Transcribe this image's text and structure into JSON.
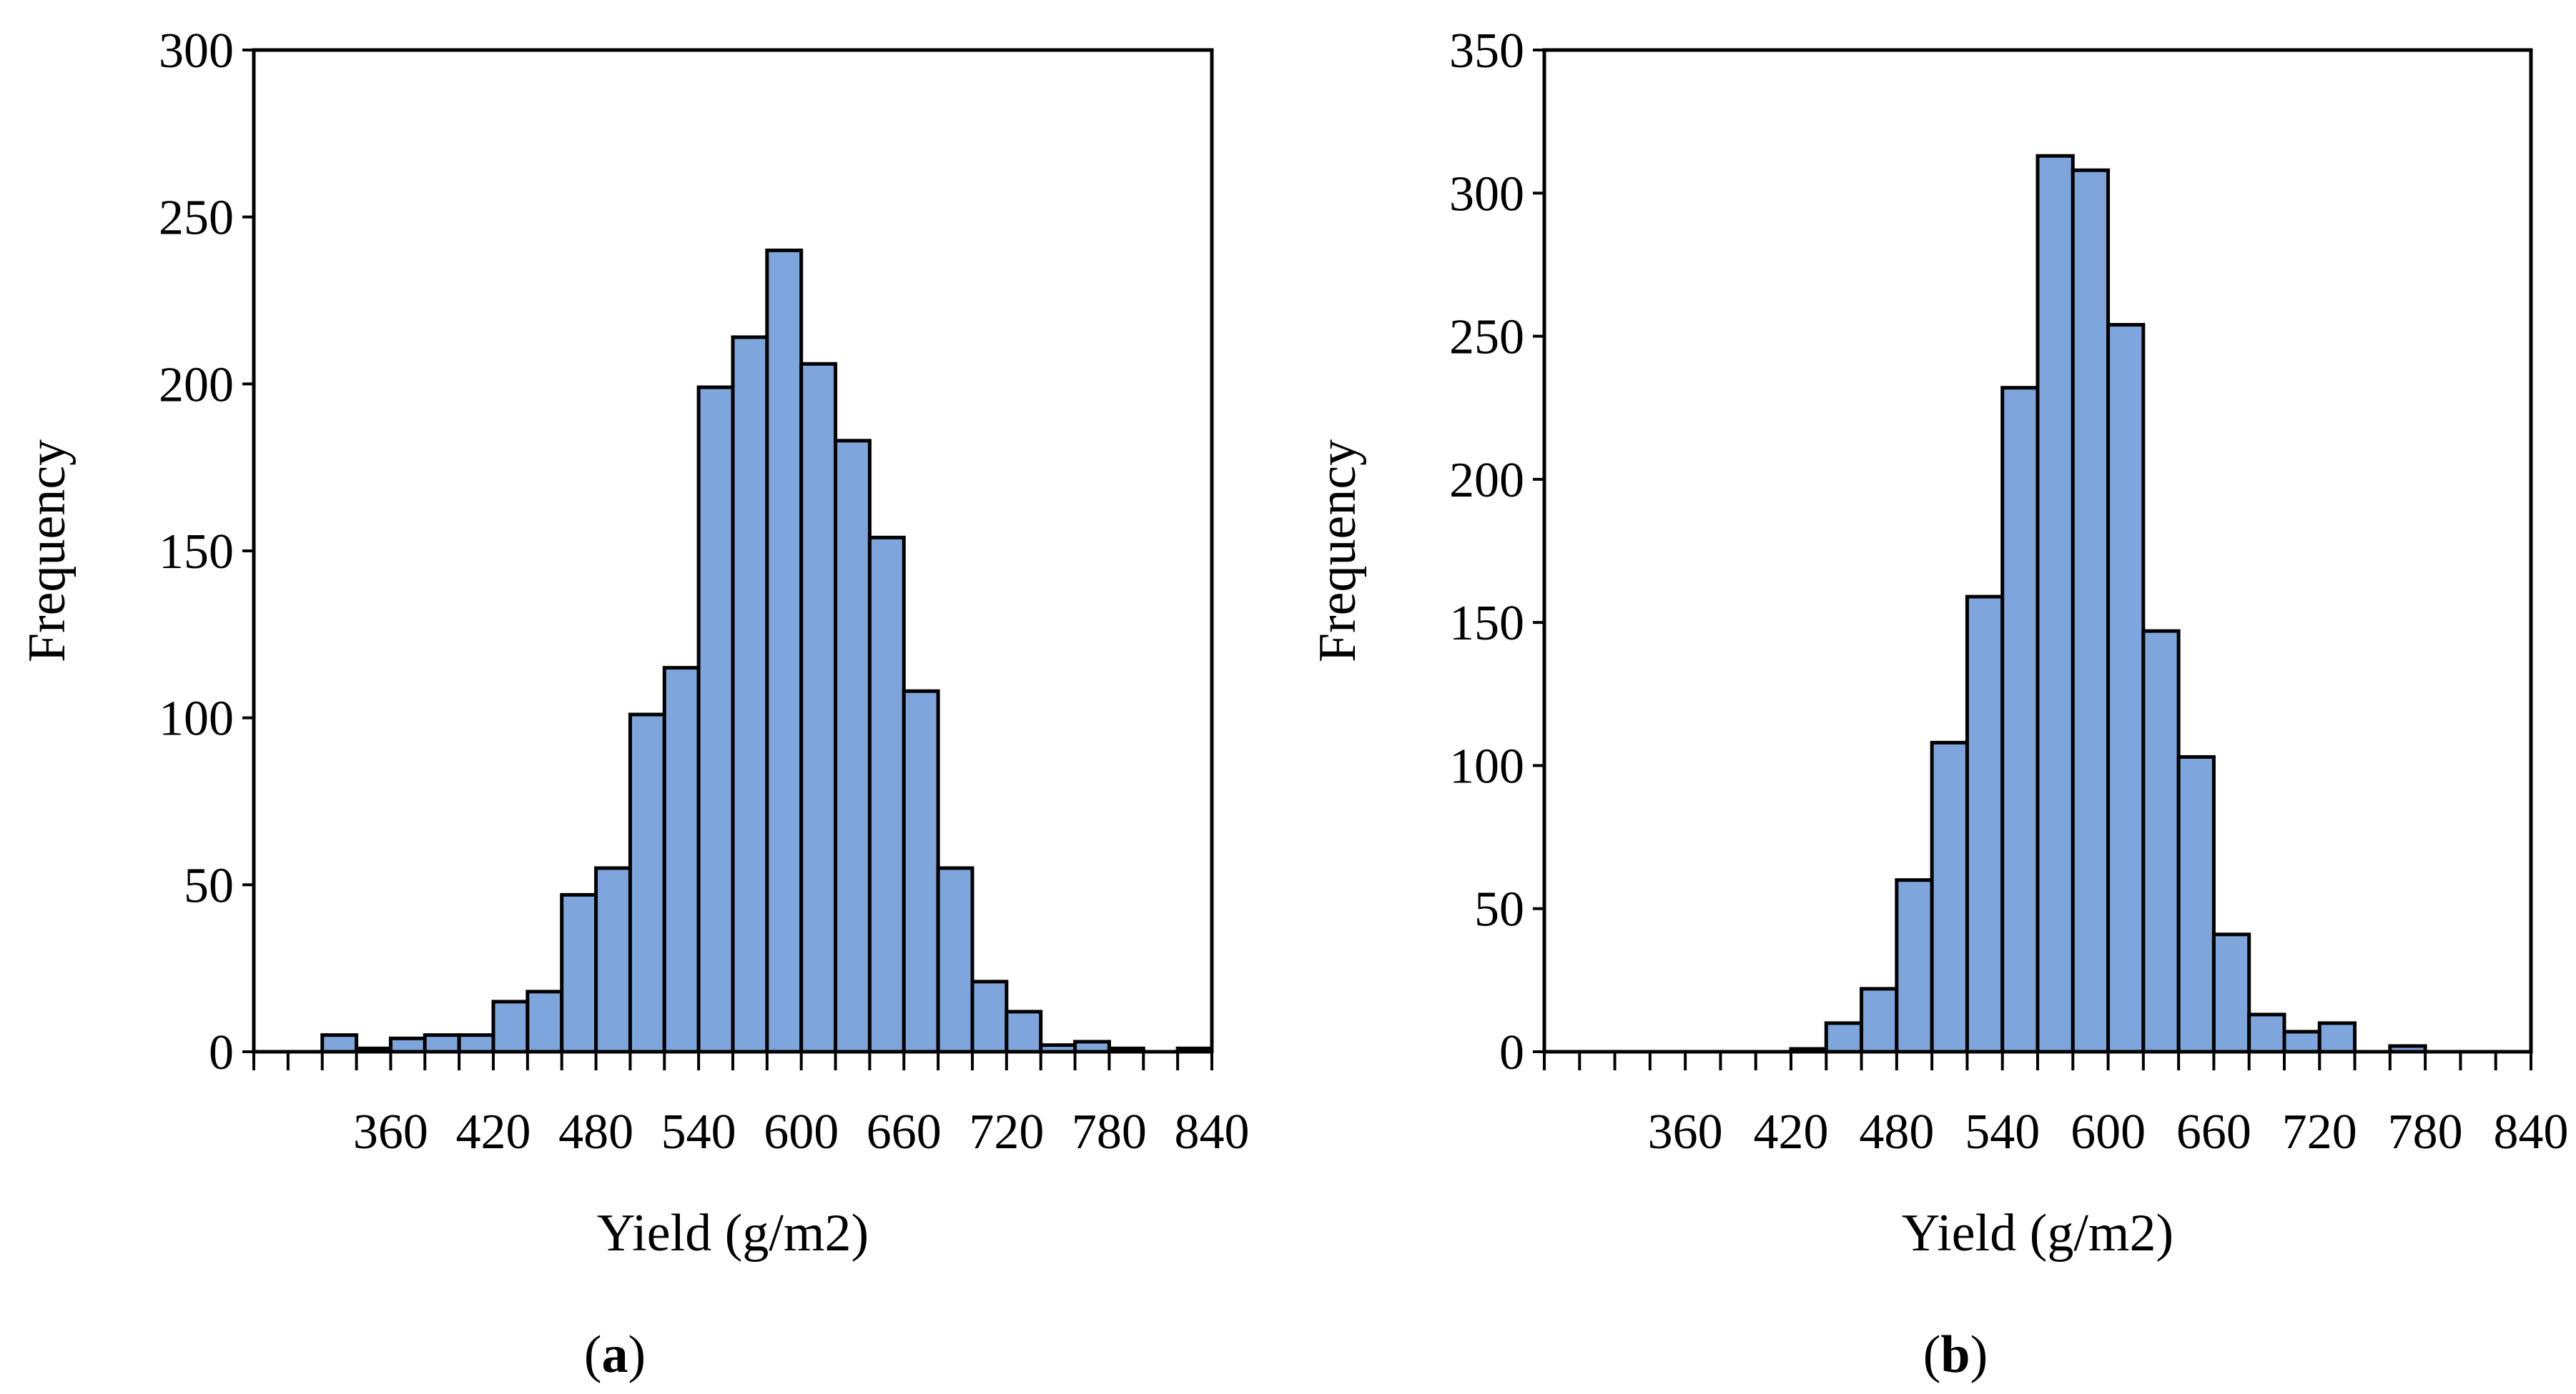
{
  "chart_data": [
    {
      "type": "bar",
      "panel_label": "a",
      "xlabel": "Yield (g/m2)",
      "ylabel": "Frequency",
      "ylim": [
        0,
        300
      ],
      "y_ticks": [
        0,
        50,
        100,
        150,
        200,
        250,
        300
      ],
      "xlim": [
        280,
        840
      ],
      "x_tick_labels": [
        360,
        420,
        480,
        540,
        600,
        660,
        720,
        780,
        840
      ],
      "bin_width": 20,
      "bins": [
        300,
        320,
        340,
        360,
        380,
        400,
        420,
        440,
        460,
        480,
        500,
        520,
        540,
        560,
        580,
        600,
        620,
        640,
        660,
        680,
        700,
        720,
        740,
        760,
        780,
        800,
        820,
        840
      ],
      "values": [
        0,
        0,
        5,
        1,
        4,
        5,
        5,
        15,
        18,
        47,
        55,
        101,
        115,
        199,
        214,
        240,
        206,
        183,
        154,
        108,
        55,
        21,
        12,
        2,
        3,
        1,
        0,
        1
      ]
    },
    {
      "type": "bar",
      "panel_label": "b",
      "xlabel": "Yield (g/m2)",
      "ylabel": "Frequency",
      "ylim": [
        0,
        350
      ],
      "y_ticks": [
        0,
        50,
        100,
        150,
        200,
        250,
        300,
        350
      ],
      "xlim": [
        280,
        840
      ],
      "x_tick_labels": [
        360,
        420,
        480,
        540,
        600,
        660,
        720,
        780,
        840
      ],
      "bin_width": 20,
      "bins": [
        300,
        320,
        340,
        360,
        380,
        400,
        420,
        440,
        460,
        480,
        500,
        520,
        540,
        560,
        580,
        600,
        620,
        640,
        660,
        680,
        700,
        720,
        740,
        760,
        780,
        800,
        820,
        840
      ],
      "values": [
        0,
        0,
        0,
        0,
        0,
        0,
        0,
        1,
        10,
        22,
        60,
        108,
        159,
        232,
        313,
        308,
        254,
        147,
        103,
        41,
        13,
        7,
        10,
        0,
        2,
        0,
        0,
        0
      ]
    }
  ]
}
